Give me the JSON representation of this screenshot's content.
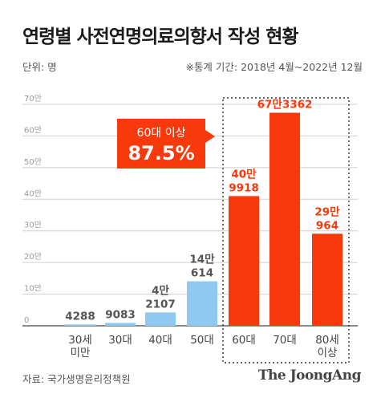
{
  "title": "연령별 사전연명의료의향서 작성 현황",
  "unit_text": "단위: 명",
  "period_text": "※통계 기간: 2018년 4월~2022년 12월",
  "source_text": "자료: 국가생명윤리정책원",
  "brand_text": "The JoongAng",
  "colors": {
    "highlight": "#f7390b",
    "base": "#8fc9f2",
    "grid": "#cfcfcf",
    "tick_text": "#9a9a9a",
    "value_text_base": "#555555",
    "value_text_highlight": "#f7390b"
  },
  "callout": {
    "line1": "60대 이상",
    "line2": "87.5%"
  },
  "chart_data": {
    "type": "bar",
    "title": "연령별 사전연명의료의향서 작성 현황",
    "xlabel": "",
    "ylabel": "",
    "ylim": [
      0,
      700000
    ],
    "yticks": [
      0,
      100000,
      200000,
      300000,
      400000,
      500000,
      600000,
      700000
    ],
    "ytick_labels": [
      "0",
      "10만",
      "20만",
      "30만",
      "40만",
      "50만",
      "60만",
      "70만"
    ],
    "grid": true,
    "categories": [
      "30세 미만",
      "30대",
      "40대",
      "50대",
      "60대",
      "70대",
      "80세 이상"
    ],
    "category_labels": [
      [
        "30세",
        "미만"
      ],
      [
        "30대"
      ],
      [
        "40대"
      ],
      [
        "50대"
      ],
      [
        "60대"
      ],
      [
        "70대"
      ],
      [
        "80세",
        "이상"
      ]
    ],
    "values": [
      4288,
      9083,
      42107,
      140614,
      409918,
      673362,
      290964
    ],
    "value_labels": [
      [
        "4288"
      ],
      [
        "9083"
      ],
      [
        "4만",
        "2107"
      ],
      [
        "14만",
        "614"
      ],
      [
        "40만",
        "9918"
      ],
      [
        "67만3362"
      ],
      [
        "29만",
        "964"
      ]
    ],
    "highlighted": [
      false,
      false,
      false,
      false,
      true,
      true,
      true
    ]
  }
}
